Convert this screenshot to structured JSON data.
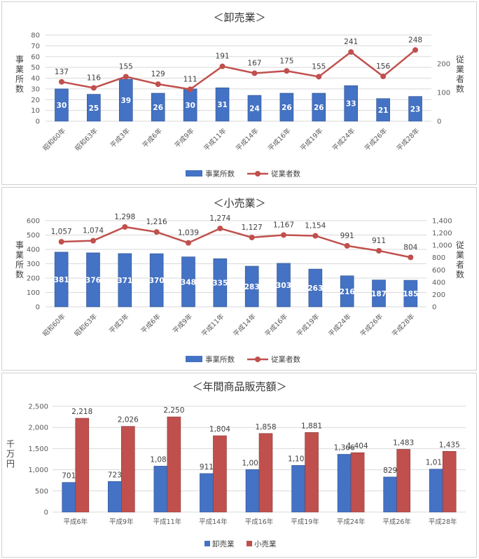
{
  "colors": {
    "bar": "#4472C4",
    "line": "#C0504D",
    "grid": "#d9d9d9"
  },
  "chart_data": [
    {
      "type": "bar+line",
      "title": "＜卸売業＞",
      "categories": [
        "昭和60年",
        "昭和63年",
        "平成3年",
        "平成6年",
        "平成9年",
        "平成11年",
        "平成14年",
        "平成16年",
        "平成19年",
        "平成24年",
        "平成26年",
        "平成28年"
      ],
      "series": [
        {
          "name": "事業所数",
          "kind": "bar",
          "axis": "left",
          "values": [
            30,
            25,
            39,
            26,
            30,
            31,
            24,
            26,
            26,
            33,
            21,
            23
          ]
        },
        {
          "name": "従業者数",
          "kind": "line",
          "axis": "right",
          "values": [
            137,
            116,
            155,
            129,
            111,
            191,
            167,
            175,
            155,
            241,
            156,
            248
          ]
        }
      ],
      "ylabel": "事業所数",
      "y2label": "従業者数",
      "ylim": [
        0,
        80
      ],
      "yticks": [
        "0",
        "10",
        "20",
        "30",
        "40",
        "50",
        "60",
        "70",
        "80"
      ],
      "y2lim": [
        0,
        300
      ],
      "y2ticks": [
        "0",
        "100",
        "200"
      ],
      "legend_position": "bottom"
    },
    {
      "type": "bar+line",
      "title": "＜小売業＞",
      "categories": [
        "昭和60年",
        "昭和63年",
        "平成3年",
        "平成6年",
        "平成9年",
        "平成11年",
        "平成14年",
        "平成16年",
        "平成19年",
        "平成24年",
        "平成26年",
        "平成28年"
      ],
      "series": [
        {
          "name": "事業所数",
          "kind": "bar",
          "axis": "left",
          "values": [
            381,
            376,
            371,
            370,
            348,
            335,
            283,
            303,
            263,
            216,
            187,
            185
          ]
        },
        {
          "name": "従業者数",
          "kind": "line",
          "axis": "right",
          "values": [
            1057,
            1074,
            1298,
            1216,
            1039,
            1274,
            1127,
            1167,
            1154,
            991,
            911,
            804
          ],
          "labels": [
            "1,057",
            "1,074",
            "1,298",
            "1,216",
            "1,039",
            "1,274",
            "1,127",
            "1,167",
            "1,154",
            "991",
            "911",
            "804"
          ]
        }
      ],
      "ylabel": "事業所数",
      "y2label": "従業者数",
      "ylim": [
        0,
        600
      ],
      "yticks": [
        "0",
        "100",
        "200",
        "300",
        "400",
        "500",
        "600"
      ],
      "y2lim": [
        0,
        1400
      ],
      "y2ticks": [
        "0",
        "200",
        "400",
        "600",
        "800",
        "1,000",
        "1,200",
        "1,400"
      ],
      "legend_position": "bottom"
    },
    {
      "type": "bar",
      "title": "＜年間商品販売額＞",
      "categories": [
        "平成6年",
        "平成9年",
        "平成11年",
        "平成14年",
        "平成16年",
        "平成19年",
        "平成24年",
        "平成26年",
        "平成28年"
      ],
      "series": [
        {
          "name": "卸売業",
          "values": [
            701,
            723,
            1086,
            911,
            1005,
            1103,
            1366,
            829,
            1015
          ],
          "labels": [
            "701",
            "723",
            "1,086",
            "911",
            "1,005",
            "1,103",
            "1,366",
            "829",
            "1,015"
          ]
        },
        {
          "name": "小売業",
          "values": [
            2218,
            2026,
            2250,
            1804,
            1858,
            1881,
            1404,
            1483,
            1435
          ],
          "labels": [
            "2,218",
            "2,026",
            "2,250",
            "1,804",
            "1,858",
            "1,881",
            "1,404",
            "1,483",
            "1,435"
          ]
        }
      ],
      "ylabel": "千万円",
      "ylim": [
        0,
        2500
      ],
      "yticks": [
        "0",
        "500",
        "1,000",
        "1,500",
        "2,000",
        "2,500"
      ],
      "legend_position": "bottom"
    }
  ]
}
